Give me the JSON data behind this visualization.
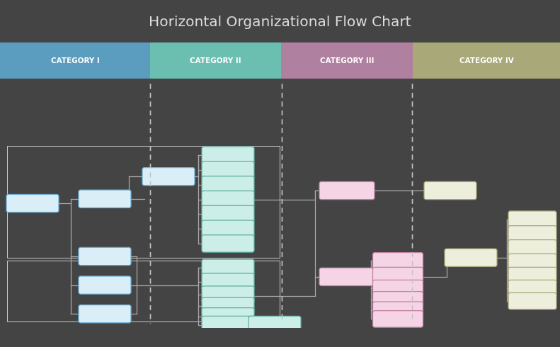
{
  "title": "Horizontal Organizational Flow Chart",
  "title_color": "#dddddd",
  "header_bg": "#606060",
  "outer_bg": "#444444",
  "chart_bg": "#ffffff",
  "cat_colors": [
    "#5b9dbf",
    "#6bbfb0",
    "#b080a0",
    "#a8a878"
  ],
  "cat_labels": [
    "CATEGORY I",
    "CATEGORY II",
    "CATEGORY III",
    "CATEGORY IV"
  ],
  "cat_splits": [
    0.0,
    0.268,
    0.502,
    0.737,
    1.0
  ],
  "c1_face": "#daeef8",
  "c1_edge": "#6aaed6",
  "c2_face": "#cceee8",
  "c2_edge": "#60b0a0",
  "c3_face": "#f5d5e5",
  "c3_edge": "#c080a0",
  "c4_face": "#eeeedd",
  "c4_edge": "#a8a878",
  "line_color": "#aaaaaa",
  "dash_color": "#c0c0c0"
}
